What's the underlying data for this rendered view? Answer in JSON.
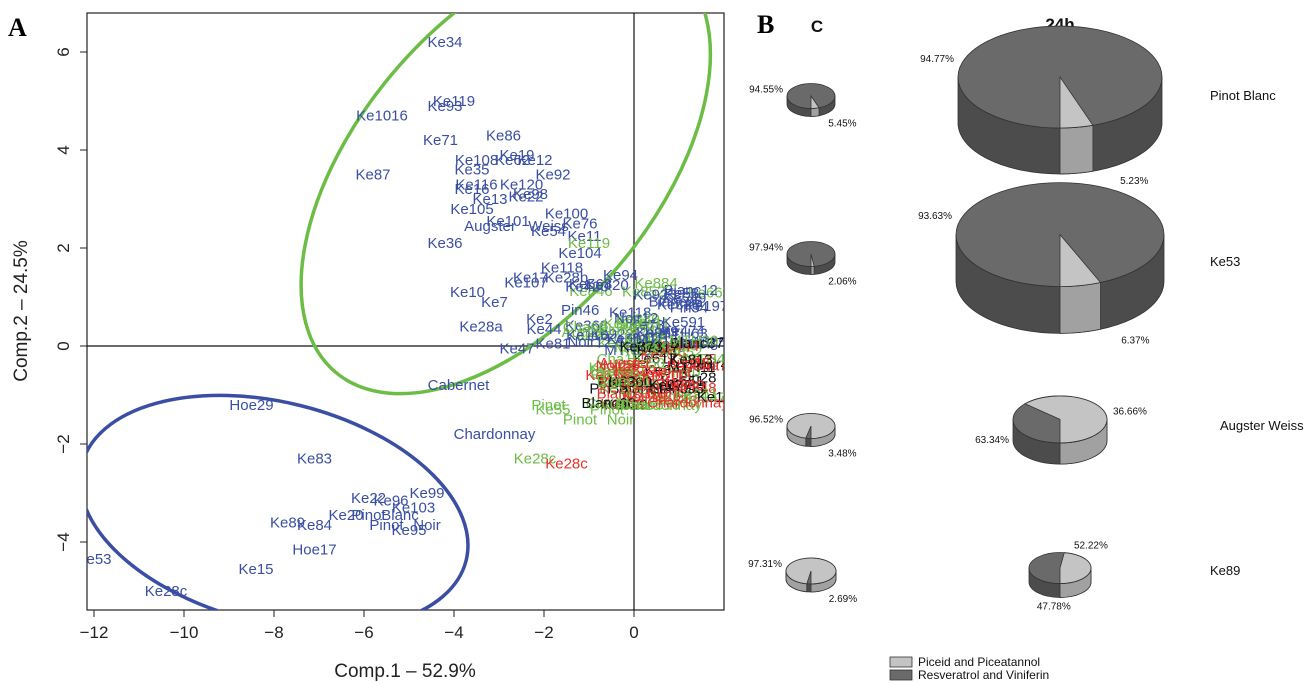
{
  "panels": {
    "a": "A",
    "b": "B"
  },
  "colors": {
    "group_blue": "#3a4fa3",
    "group_green": "#6cbd45",
    "group_red": "#e8302a",
    "black": "#111111",
    "piceid": "#c4c4c4",
    "resveratrol": "#6a6a6a"
  },
  "chart_data": [
    {
      "type": "scatter",
      "panel": "A",
      "xlabel": "Comp.1 – 52.9%",
      "ylabel": "Comp.2 – 24.5%",
      "xlim": [
        -12.5,
        2.0
      ],
      "ylim": [
        -5.5,
        6.8
      ],
      "xticks": [
        -12,
        -10,
        -8,
        -6,
        -4,
        -2,
        0
      ],
      "yticks": [
        -4,
        -2,
        0,
        2,
        4,
        6
      ],
      "xtick_labels": [
        "−12",
        "−10",
        "−8",
        "−6",
        "−4",
        "−2",
        "0"
      ],
      "ytick_labels": [
        "−4",
        "−2",
        "0",
        "2",
        "4",
        "6"
      ],
      "reference_lines": {
        "x": 0,
        "y": 0
      },
      "ellipses": [
        {
          "group": "green",
          "cx": -2.85,
          "cy": 3.6,
          "rx": 3.3,
          "ry": 5.4,
          "rotation_deg": 40
        },
        {
          "group": "blue",
          "cx": -8.0,
          "cy": -3.4,
          "rx": 4.4,
          "ry": 2.25,
          "rotation_deg": 14
        }
      ],
      "points": [
        {
          "label": "Ke34",
          "x": -4.2,
          "y": 6.2,
          "group": "blue"
        },
        {
          "label": "Ke119",
          "x": -4.0,
          "y": 5.0,
          "group": "blue"
        },
        {
          "label": "Ke93",
          "x": -4.2,
          "y": 4.9,
          "group": "blue"
        },
        {
          "label": "Ke1016",
          "x": -5.6,
          "y": 4.7,
          "group": "blue"
        },
        {
          "label": "Ke71",
          "x": -4.3,
          "y": 4.2,
          "group": "blue"
        },
        {
          "label": "Ke86",
          "x": -2.9,
          "y": 4.3,
          "group": "blue"
        },
        {
          "label": "Ke87",
          "x": -5.8,
          "y": 3.5,
          "group": "blue"
        },
        {
          "label": "Ke19",
          "x": -2.6,
          "y": 3.9,
          "group": "blue"
        },
        {
          "label": "Ke12",
          "x": -2.2,
          "y": 3.8,
          "group": "blue"
        },
        {
          "label": "Ke108",
          "x": -3.5,
          "y": 3.8,
          "group": "blue"
        },
        {
          "label": "Ke62",
          "x": -2.7,
          "y": 3.8,
          "group": "blue"
        },
        {
          "label": "Ke35",
          "x": -3.6,
          "y": 3.6,
          "group": "blue"
        },
        {
          "label": "Ke92",
          "x": -1.8,
          "y": 3.5,
          "group": "blue"
        },
        {
          "label": "Ke116",
          "x": -3.5,
          "y": 3.3,
          "group": "blue"
        },
        {
          "label": "Ke120",
          "x": -2.5,
          "y": 3.3,
          "group": "blue"
        },
        {
          "label": "Ke16",
          "x": -3.6,
          "y": 3.2,
          "group": "blue"
        },
        {
          "label": "Ke98",
          "x": -2.3,
          "y": 3.1,
          "group": "blue"
        },
        {
          "label": "Ke22",
          "x": -2.4,
          "y": 3.05,
          "group": "blue"
        },
        {
          "label": "Ke13",
          "x": -3.2,
          "y": 3.0,
          "group": "blue"
        },
        {
          "label": "Ke105",
          "x": -3.6,
          "y": 2.8,
          "group": "blue"
        },
        {
          "label": "Ke100",
          "x": -1.5,
          "y": 2.7,
          "group": "blue"
        },
        {
          "label": "Ke101",
          "x": -2.8,
          "y": 2.55,
          "group": "blue"
        },
        {
          "label": "Ke76",
          "x": -1.2,
          "y": 2.5,
          "group": "blue"
        },
        {
          "label": "Augster",
          "x": -3.2,
          "y": 2.45,
          "group": "blue"
        },
        {
          "label": "Weiss",
          "x": -1.9,
          "y": 2.45,
          "group": "blue"
        },
        {
          "label": "Ke54",
          "x": -1.9,
          "y": 2.35,
          "group": "blue"
        },
        {
          "label": "Ke11",
          "x": -1.1,
          "y": 2.25,
          "group": "blue"
        },
        {
          "label": "Ke119",
          "x": -1.0,
          "y": 2.1,
          "group": "green"
        },
        {
          "label": "Ke36",
          "x": -4.2,
          "y": 2.1,
          "group": "blue"
        },
        {
          "label": "Ke104",
          "x": -1.2,
          "y": 1.9,
          "group": "blue"
        },
        {
          "label": "Ke118",
          "x": -1.6,
          "y": 1.6,
          "group": "blue"
        },
        {
          "label": "Ke17",
          "x": -2.3,
          "y": 1.4,
          "group": "blue"
        },
        {
          "label": "Ke28b",
          "x": -1.5,
          "y": 1.4,
          "group": "blue"
        },
        {
          "label": "Ke107",
          "x": -2.4,
          "y": 1.3,
          "group": "blue"
        },
        {
          "label": "Ke94",
          "x": -0.3,
          "y": 1.45,
          "group": "blue"
        },
        {
          "label": "Ke420",
          "x": -0.6,
          "y": 1.25,
          "group": "blue"
        },
        {
          "label": "Ke10",
          "x": -3.7,
          "y": 1.1,
          "group": "blue"
        },
        {
          "label": "Ke7",
          "x": -3.1,
          "y": 0.9,
          "group": "blue"
        },
        {
          "label": "Ke28a",
          "x": -3.4,
          "y": 0.4,
          "group": "blue"
        },
        {
          "label": "Ke2",
          "x": -2.1,
          "y": 0.55,
          "group": "blue"
        },
        {
          "label": "Ke44",
          "x": -2.0,
          "y": 0.35,
          "group": "blue"
        },
        {
          "label": "Ke47",
          "x": -2.6,
          "y": -0.05,
          "group": "blue"
        },
        {
          "label": "Ke81",
          "x": -1.8,
          "y": 0.05,
          "group": "blue"
        },
        {
          "label": "MTH",
          "x": 0.4,
          "y": 0.15,
          "group": "blue"
        },
        {
          "label": "Cabernet",
          "x": -3.9,
          "y": -0.8,
          "group": "blue"
        },
        {
          "label": "Pinot",
          "x": -1.9,
          "y": -1.2,
          "group": "green"
        },
        {
          "label": "Ke55",
          "x": -1.8,
          "y": -1.3,
          "group": "green"
        },
        {
          "label": "Pinot",
          "x": -0.6,
          "y": -1.3,
          "group": "green"
        },
        {
          "label": "Blanc",
          "x": 0.0,
          "y": -1.2,
          "group": "green"
        },
        {
          "label": "Chardonnay",
          "x": -3.1,
          "y": -1.8,
          "group": "blue"
        },
        {
          "label": "Pinot",
          "x": -1.2,
          "y": -1.5,
          "group": "green"
        },
        {
          "label": "Noir",
          "x": -0.3,
          "y": -1.5,
          "group": "green"
        },
        {
          "label": "Chardonnay",
          "x": 0.6,
          "y": -1.2,
          "group": "green"
        },
        {
          "label": "Ke28c",
          "x": -2.2,
          "y": -2.3,
          "group": "green"
        },
        {
          "label": "Ke28c",
          "x": -1.5,
          "y": -2.4,
          "group": "red"
        },
        {
          "label": "Augster",
          "x": -0.2,
          "y": -0.35,
          "group": "red"
        },
        {
          "label": "Blanc",
          "x": 0.7,
          "y": -0.95,
          "group": "red"
        },
        {
          "label": "Noir",
          "x": 1.0,
          "y": -0.75,
          "group": "red"
        },
        {
          "label": "Pinot",
          "x": 0.9,
          "y": -0.55,
          "group": "red"
        },
        {
          "label": "Chardonnay",
          "x": 1.2,
          "y": -1.15,
          "group": "red"
        },
        {
          "label": "Hoe29",
          "x": -8.5,
          "y": -1.2,
          "group": "blue"
        },
        {
          "label": "Ke83",
          "x": -7.1,
          "y": -2.3,
          "group": "blue"
        },
        {
          "label": "Ke22",
          "x": -5.9,
          "y": -3.1,
          "group": "blue"
        },
        {
          "label": "Ke96",
          "x": -5.4,
          "y": -3.15,
          "group": "blue"
        },
        {
          "label": "Ke99",
          "x": -4.6,
          "y": -3.0,
          "group": "blue"
        },
        {
          "label": "Ke20",
          "x": -6.4,
          "y": -3.45,
          "group": "blue"
        },
        {
          "label": "Pinot",
          "x": -5.9,
          "y": -3.45,
          "group": "blue"
        },
        {
          "label": "Blanc",
          "x": -5.2,
          "y": -3.45,
          "group": "blue"
        },
        {
          "label": "Ke103",
          "x": -4.9,
          "y": -3.3,
          "group": "blue"
        },
        {
          "label": "Ke89",
          "x": -7.7,
          "y": -3.6,
          "group": "blue"
        },
        {
          "label": "Ke84",
          "x": -7.1,
          "y": -3.65,
          "group": "blue"
        },
        {
          "label": "Pinot",
          "x": -5.5,
          "y": -3.65,
          "group": "blue"
        },
        {
          "label": "Noir",
          "x": -4.6,
          "y": -3.65,
          "group": "blue"
        },
        {
          "label": "Ke95",
          "x": -5.0,
          "y": -3.75,
          "group": "blue"
        },
        {
          "label": "Hoe17",
          "x": -7.1,
          "y": -4.15,
          "group": "blue"
        },
        {
          "label": "Ke53",
          "x": -12.0,
          "y": -4.35,
          "group": "blue"
        },
        {
          "label": "Ke15",
          "x": -8.4,
          "y": -4.55,
          "group": "blue"
        },
        {
          "label": "Ke28c",
          "x": -10.4,
          "y": -5.0,
          "group": "blue"
        }
      ],
      "crowded_clusters": [
        {
          "region": "near origin, upper right",
          "groups": [
            "blue",
            "green"
          ],
          "x_range": [
            -1.2,
            1.9
          ],
          "y_range": [
            -0.3,
            1.2
          ],
          "count": 50
        },
        {
          "region": "near origin, lower right",
          "groups": [
            "red",
            "green",
            "black"
          ],
          "x_range": [
            -0.6,
            1.9
          ],
          "y_range": [
            -1.3,
            0.05
          ],
          "count": 60
        }
      ]
    },
    {
      "type": "pie",
      "panel": "B",
      "columns": [
        "C",
        "24h"
      ],
      "legend": [
        {
          "name": "Piceid and Piceatannol",
          "color": "#c4c4c4"
        },
        {
          "name": "Resveratrol and Viniferin",
          "color": "#6a6a6a"
        }
      ],
      "rows": [
        {
          "sample": "Pinot Blanc",
          "C": {
            "piceid": 5.45,
            "resveratrol": 94.55
          },
          "24h": {
            "piceid": 5.23,
            "resveratrol": 94.77
          }
        },
        {
          "sample": "Ke53",
          "C": {
            "piceid": 2.06,
            "resveratrol": 97.94
          },
          "24h": {
            "piceid": 6.37,
            "resveratrol": 93.63
          }
        },
        {
          "sample": "Augster Weiss",
          "C": {
            "piceid": 96.52,
            "resveratrol": 3.48
          },
          "24h": {
            "piceid": 63.34,
            "resveratrol": 36.66
          }
        },
        {
          "sample": "Ke89",
          "C": {
            "piceid": 97.31,
            "resveratrol": 2.69
          },
          "24h": {
            "piceid": 47.78,
            "resveratrol": 52.22
          }
        }
      ],
      "labels_text": {
        "Pinot Blanc": {
          "C": [
            "94.55%",
            "5.45%"
          ],
          "24h": [
            "94.77%",
            "5.23%"
          ]
        },
        "Ke53": {
          "C": [
            "97.94%",
            "2.06%"
          ],
          "24h": [
            "93.63%",
            "6.37%"
          ]
        },
        "Augster Weiss": {
          "C": [
            "96.52%",
            "3.48%"
          ],
          "24h": [
            "36.66%",
            "63.34%"
          ]
        },
        "Ke89": {
          "C": [
            "97.31%",
            "2.69%"
          ],
          "24h": [
            "52.22%",
            "47.78%"
          ]
        }
      }
    }
  ]
}
